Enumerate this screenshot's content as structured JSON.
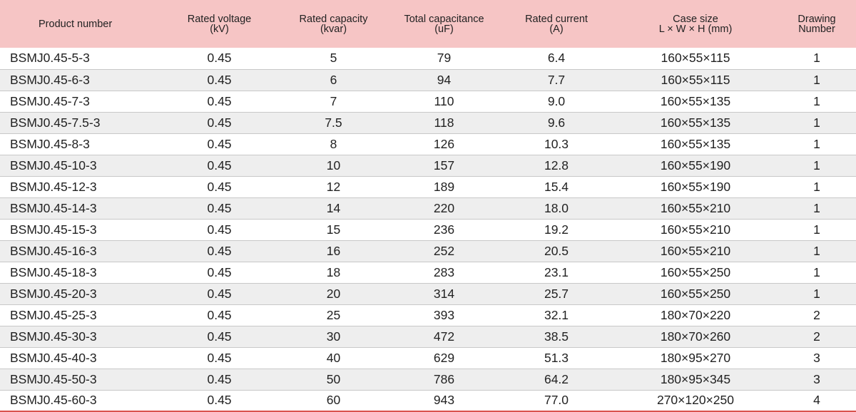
{
  "headers": [
    {
      "l1": "Product number",
      "l2": ""
    },
    {
      "l1": "Rated voltage",
      "l2": "(kV)"
    },
    {
      "l1": "Rated capacity",
      "l2": "(kvar)"
    },
    {
      "l1": "Total capacitance",
      "l2": "(uF)"
    },
    {
      "l1": "Rated current",
      "l2": "(A)"
    },
    {
      "l1": "Case size",
      "l2": "L × W × H (mm)"
    },
    {
      "l1": "Drawing",
      "l2": "Number"
    }
  ],
  "rows": [
    [
      "BSMJ0.45-5-3",
      "0.45",
      "5",
      "79",
      "6.4",
      "160×55×115",
      "1"
    ],
    [
      "BSMJ0.45-6-3",
      "0.45",
      "6",
      "94",
      "7.7",
      "160×55×115",
      "1"
    ],
    [
      "BSMJ0.45-7-3",
      "0.45",
      "7",
      "110",
      "9.0",
      "160×55×135",
      "1"
    ],
    [
      "BSMJ0.45-7.5-3",
      "0.45",
      "7.5",
      "118",
      "9.6",
      "160×55×135",
      "1"
    ],
    [
      "BSMJ0.45-8-3",
      "0.45",
      "8",
      "126",
      "10.3",
      "160×55×135",
      "1"
    ],
    [
      "BSMJ0.45-10-3",
      "0.45",
      "10",
      "157",
      "12.8",
      "160×55×190",
      "1"
    ],
    [
      "BSMJ0.45-12-3",
      "0.45",
      "12",
      "189",
      "15.4",
      "160×55×190",
      "1"
    ],
    [
      "BSMJ0.45-14-3",
      "0.45",
      "14",
      "220",
      "18.0",
      "160×55×210",
      "1"
    ],
    [
      "BSMJ0.45-15-3",
      "0.45",
      "15",
      "236",
      "19.2",
      "160×55×210",
      "1"
    ],
    [
      "BSMJ0.45-16-3",
      "0.45",
      "16",
      "252",
      "20.5",
      "160×55×210",
      "1"
    ],
    [
      "BSMJ0.45-18-3",
      "0.45",
      "18",
      "283",
      "23.1",
      "160×55×250",
      "1"
    ],
    [
      "BSMJ0.45-20-3",
      "0.45",
      "20",
      "314",
      "25.7",
      "160×55×250",
      "1"
    ],
    [
      "BSMJ0.45-25-3",
      "0.45",
      "25",
      "393",
      "32.1",
      "180×70×220",
      "2"
    ],
    [
      "BSMJ0.45-30-3",
      "0.45",
      "30",
      "472",
      "38.5",
      "180×70×260",
      "2"
    ],
    [
      "BSMJ0.45-40-3",
      "0.45",
      "40",
      "629",
      "51.3",
      "180×95×270",
      "3"
    ],
    [
      "BSMJ0.45-50-3",
      "0.45",
      "50",
      "786",
      "64.2",
      "180×95×345",
      "3"
    ],
    [
      "BSMJ0.45-60-3",
      "0.45",
      "60",
      "943",
      "77.0",
      "270×120×250",
      "4"
    ]
  ]
}
